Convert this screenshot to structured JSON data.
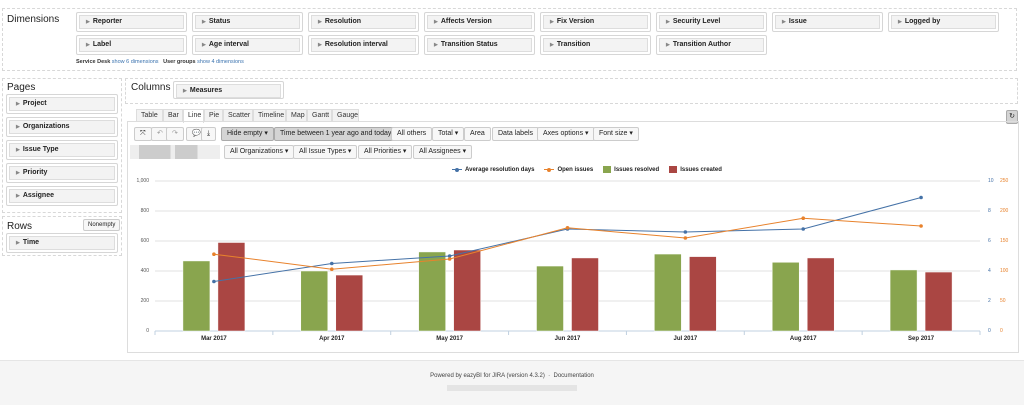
{
  "dimensions": {
    "title": "Dimensions",
    "row1": [
      "Reporter",
      "Status",
      "Resolution",
      "Affects Version",
      "Fix Version",
      "Security Level",
      "Issue",
      "Logged by"
    ],
    "row2": [
      "Label",
      "Age interval",
      "Resolution interval",
      "Transition Status",
      "Transition",
      "Transition Author"
    ],
    "service_desk_label": "Service Desk",
    "service_desk_link": "show 6 dimensions",
    "user_groups_label": "User groups",
    "user_groups_link": "show 4 dimensions"
  },
  "pages": {
    "title": "Pages",
    "items": [
      "Project",
      "Organizations",
      "Issue Type",
      "Priority",
      "Assignee"
    ]
  },
  "rows": {
    "title": "Rows",
    "nonempty": "Nonempty",
    "items": [
      "Time"
    ]
  },
  "columns": {
    "title": "Columns",
    "items": [
      "Measures"
    ]
  },
  "tabs": [
    {
      "label": "Table"
    },
    {
      "label": "Bar"
    },
    {
      "label": "Line",
      "active": true
    },
    {
      "label": "Pie"
    },
    {
      "label": "Scatter"
    },
    {
      "label": "Timeline"
    },
    {
      "label": "Map"
    },
    {
      "label": "Gantt"
    },
    {
      "label": "Gauge"
    }
  ],
  "toolbar": {
    "hide_empty": "Hide empty ▾",
    "time_filter": "Time between 1 year ago and today",
    "all_others": "All others",
    "total": "Total ▾",
    "area": "Area",
    "data_labels": "Data labels",
    "axes_options": "Axes options ▾",
    "font_size": "Font size ▾",
    "icons": [
      "fullscreen-icon",
      "undo-icon",
      "redo-icon",
      "comment-icon",
      "download-icon",
      "refresh-icon"
    ]
  },
  "filters": [
    "All Organizations ▾",
    "All Issue Types ▾",
    "All Priorities ▾",
    "All Assignees ▾"
  ],
  "chart_data": {
    "type": "bar+line",
    "categories": [
      "Mar 2017",
      "Apr 2017",
      "May 2017",
      "Jun 2017",
      "Jul 2017",
      "Aug 2017",
      "Sep 2017"
    ],
    "series": [
      {
        "name": "Average resolution days",
        "type": "line",
        "axis": "right-1",
        "color": "#4572a7",
        "values": [
          3.3,
          4.5,
          5.0,
          6.8,
          6.6,
          6.8,
          8.9
        ]
      },
      {
        "name": "Open issues",
        "type": "line",
        "axis": "right-2",
        "color": "#e8822c",
        "values": [
          128,
          103,
          120,
          172,
          155,
          188,
          175
        ]
      },
      {
        "name": "Issues resolved",
        "type": "bar",
        "axis": "left",
        "color": "#89a54e",
        "values": [
          467,
          400,
          527,
          433,
          513,
          458,
          407
        ]
      },
      {
        "name": "Issues created",
        "type": "bar",
        "axis": "left",
        "color": "#aa4643",
        "values": [
          590,
          373,
          540,
          487,
          496,
          487,
          393
        ]
      }
    ],
    "y_left": {
      "range": [
        0,
        1000
      ],
      "ticks": [
        "0",
        "200",
        "400",
        "600",
        "800",
        "1,000"
      ]
    },
    "y_right1": {
      "range": [
        0,
        10
      ],
      "ticks": [
        "0",
        "2",
        "4",
        "6",
        "8",
        "10"
      ]
    },
    "y_right2": {
      "range": [
        0,
        250
      ],
      "ticks": [
        "0",
        "50",
        "100",
        "150",
        "200",
        "250"
      ]
    },
    "grid": true,
    "legend": "top-right"
  },
  "footer": {
    "powered": "Powered by eazyBI for JIRA (version 4.3.2)",
    "sep": "·",
    "doc": "Documentation"
  }
}
